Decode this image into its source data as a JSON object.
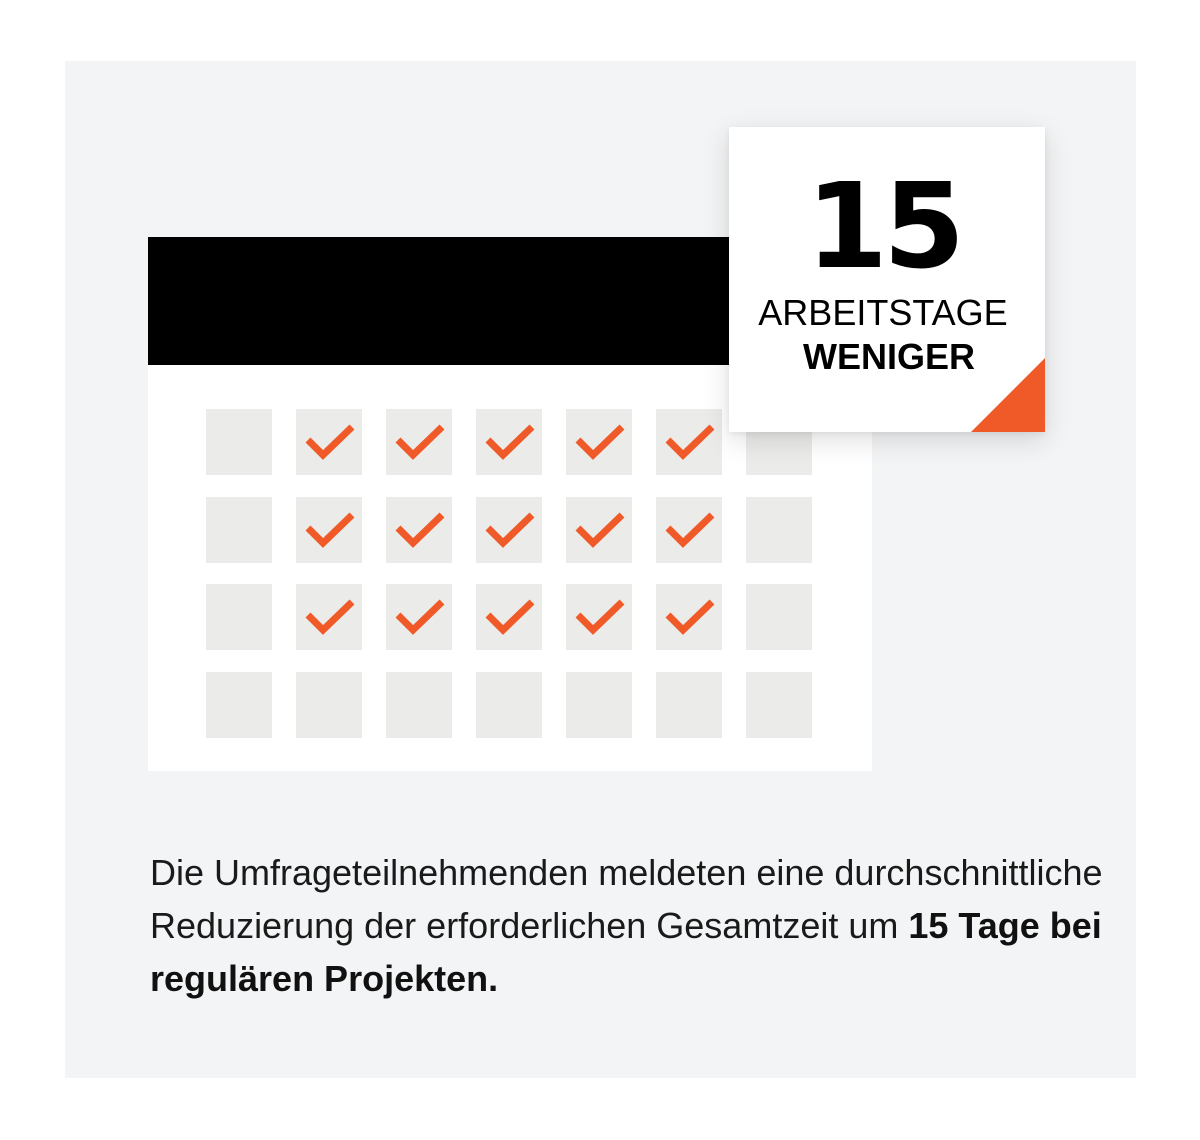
{
  "badge": {
    "number": "15",
    "line1": "ARBEITSTAGE",
    "line2": "WENIGER"
  },
  "calendar": {
    "rows": [
      [
        false,
        true,
        true,
        true,
        true,
        true,
        false
      ],
      [
        false,
        true,
        true,
        true,
        true,
        true,
        false
      ],
      [
        false,
        true,
        true,
        true,
        true,
        true,
        false
      ],
      [
        false,
        false,
        false,
        false,
        false,
        false,
        false
      ]
    ]
  },
  "caption": {
    "text_regular": "Die Umfrageteilnehmenden meldeten eine durchschnittliche Reduzierung der erforderlichen Gesamtzeit um ",
    "text_bold": "15 Tage bei regulären Projekten."
  },
  "colors": {
    "panel_background": "#f3f4f5",
    "calendar_header": "#000000",
    "day_cell": "#ebebea",
    "checkmark": "#f05a28",
    "accent": "#f05a28"
  },
  "icons": {
    "check": "checkmark-icon",
    "corner": "corner-triangle"
  }
}
